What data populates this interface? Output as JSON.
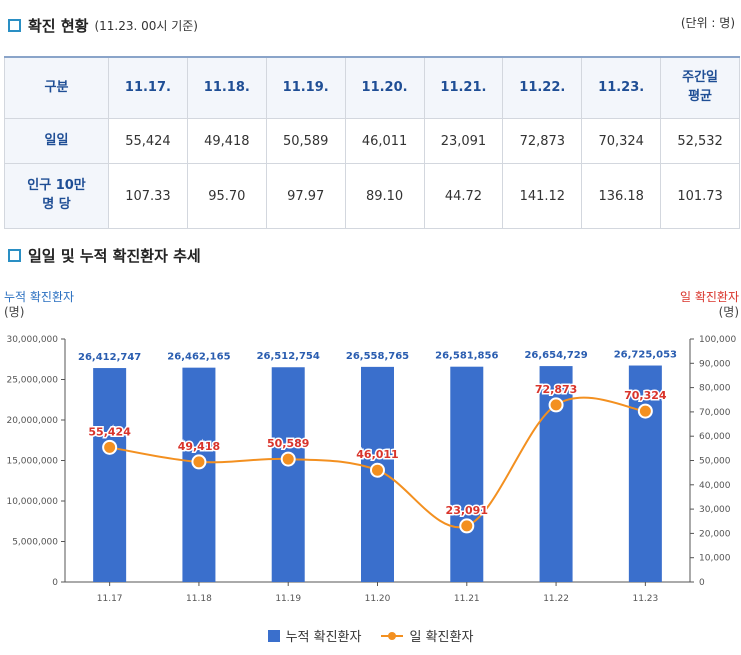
{
  "section1": {
    "title": "확진 현황",
    "subtitle": "(11.23. 00시 기준)",
    "unit": "(단위 : 명)"
  },
  "table": {
    "corner": "구분",
    "columns": [
      "11.17.",
      "11.18.",
      "11.19.",
      "11.20.",
      "11.21.",
      "11.22.",
      "11.23.",
      "주간일\n평균"
    ],
    "rows": [
      {
        "label": "일일",
        "values": [
          "55,424",
          "49,418",
          "50,589",
          "46,011",
          "23,091",
          "72,873",
          "70,324",
          "52,532"
        ]
      },
      {
        "label": "인구 10만\n명 당",
        "values": [
          "107.33",
          "95.70",
          "97.97",
          "89.10",
          "44.72",
          "141.12",
          "136.18",
          "101.73"
        ]
      }
    ]
  },
  "section2": {
    "title": "일일 및 누적 확진환자 추세"
  },
  "chart_data": {
    "type": "bar",
    "categories": [
      "11.17",
      "11.18",
      "11.19",
      "11.20",
      "11.21",
      "11.22",
      "11.23"
    ],
    "series": [
      {
        "name": "누적 확진환자",
        "type": "bar",
        "axis": "left",
        "values": [
          26412747,
          26462165,
          26512754,
          26558765,
          26581856,
          26654729,
          26725053
        ],
        "labels": [
          "26,412,747",
          "26,462,165",
          "26,512,754",
          "26,558,765",
          "26,581,856",
          "26,654,729",
          "26,725,053"
        ]
      },
      {
        "name": "일 확진환자",
        "type": "line",
        "axis": "right",
        "values": [
          55424,
          49418,
          50589,
          46011,
          23091,
          72873,
          70324
        ],
        "labels": [
          "55,424",
          "49,418",
          "50,589",
          "46,011",
          "23,091",
          "72,873",
          "70,324"
        ]
      }
    ],
    "yleft": {
      "title": "누적 확진환자",
      "unit": "(명)",
      "ylim": [
        0,
        30000000
      ],
      "ticks": [
        "0",
        "5,000,000",
        "10,000,000",
        "15,000,000",
        "20,000,000",
        "25,000,000",
        "30,000,000"
      ]
    },
    "yright": {
      "title": "일 확진환자",
      "unit": "(명)",
      "ylim": [
        0,
        100000
      ],
      "ticks": [
        "0",
        "10,000",
        "20,000",
        "30,000",
        "40,000",
        "50,000",
        "60,000",
        "70,000",
        "80,000",
        "90,000",
        "100,000"
      ]
    },
    "legend": "bottom",
    "grid": false,
    "colors": {
      "bar": "#3a6fcc",
      "bar_label": "#2a5db0",
      "line": "#f39020",
      "line_label": "#d9342b",
      "left_title": "#2a6fc0",
      "right_title": "#d9342b"
    }
  }
}
